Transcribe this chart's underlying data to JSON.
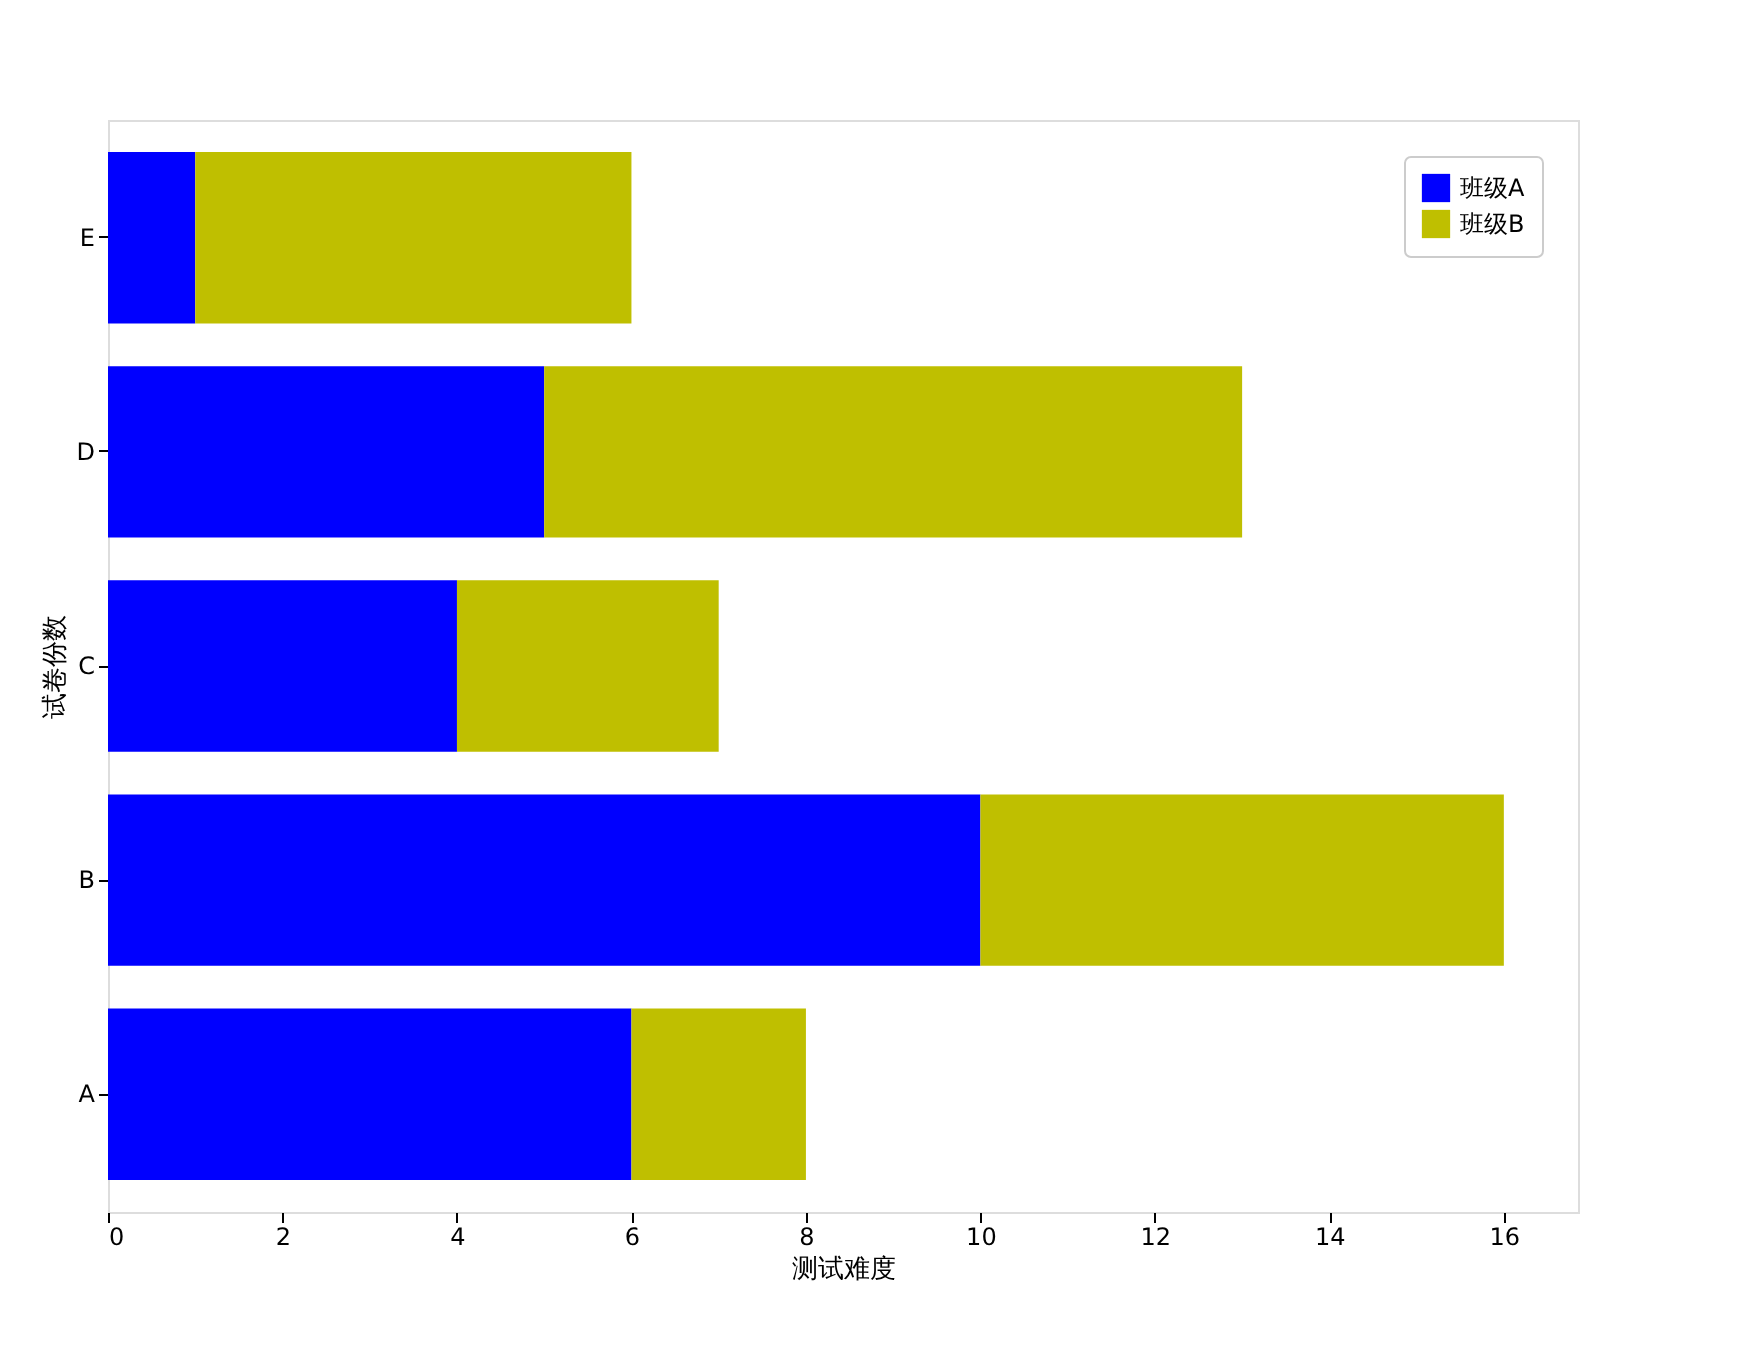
{
  "chart_data": {
    "type": "bar",
    "orientation": "horizontal",
    "stacked": true,
    "categories": [
      "E",
      "D",
      "C",
      "B",
      "A"
    ],
    "series": [
      {
        "name": "班级A",
        "color": "#0000ff",
        "values": [
          1,
          5,
          4,
          10,
          6
        ]
      },
      {
        "name": "班级B",
        "color": "#bfbf00",
        "values": [
          5,
          8,
          3,
          6,
          2
        ]
      }
    ],
    "xlabel": "测试难度",
    "ylabel": "试卷份数",
    "xlim": [
      0,
      16.85
    ],
    "xticks": [
      0,
      2,
      4,
      6,
      8,
      10,
      12,
      14,
      16
    ],
    "grid": false,
    "legend": "top right"
  }
}
